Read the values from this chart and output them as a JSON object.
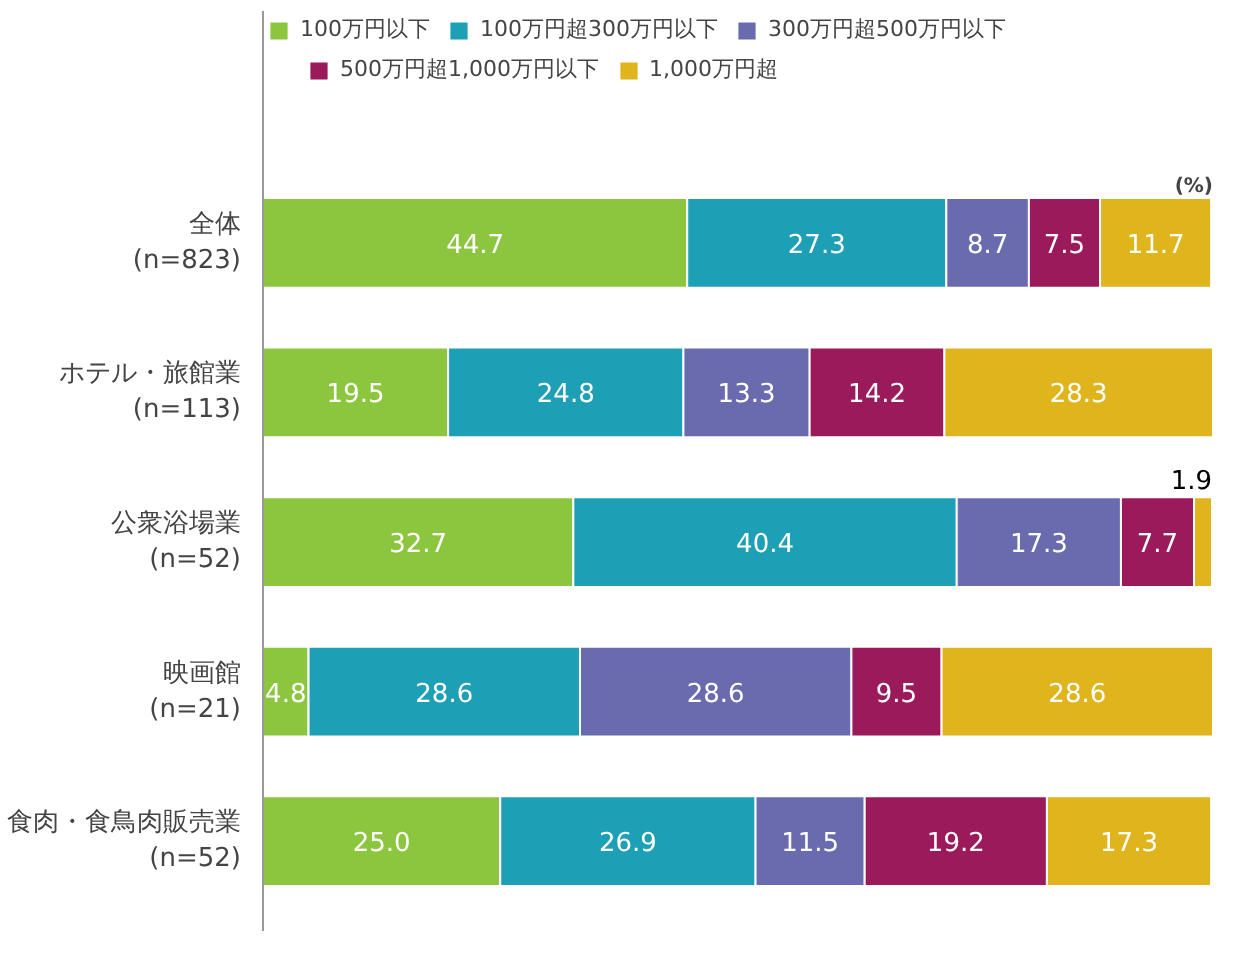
{
  "chart_data": {
    "type": "bar",
    "orientation": "horizontal",
    "stacked": true,
    "data_labels": true,
    "grid": false,
    "legend": "top",
    "annotations": [
      "(%)"
    ],
    "categories": [
      "全体\n(n=823)",
      "ホテル・旅館業\n(n=113)",
      "公衆浴場業\n(n=52)",
      "映画館\n(n=21)",
      "食肉・食鳥肉販売業\n(n=52)"
    ],
    "series": [
      {
        "name": "100万円以下",
        "color": "#8cc63e",
        "values": [
          44.7,
          19.5,
          32.7,
          4.8,
          25.0
        ],
        "value_labels": [
          "44.7",
          "19.5",
          "32.7",
          "4.8",
          "25.0"
        ]
      },
      {
        "name": "100万円超300万円以下",
        "color": "#1d9fb5",
        "values": [
          27.3,
          24.8,
          40.4,
          28.6,
          26.9
        ]
      },
      {
        "name": "300万円超500万円以下",
        "color": "#6a6aae",
        "values": [
          8.7,
          13.3,
          17.3,
          28.6,
          11.5
        ]
      },
      {
        "name": "500万円超1,000万円以下",
        "color": "#9a1a5c",
        "values": [
          7.5,
          14.2,
          7.7,
          9.5,
          19.2
        ]
      },
      {
        "name": "1,000万円超",
        "color": "#dfb41d",
        "values": [
          11.7,
          28.3,
          1.9,
          28.6,
          17.3
        ]
      }
    ]
  }
}
